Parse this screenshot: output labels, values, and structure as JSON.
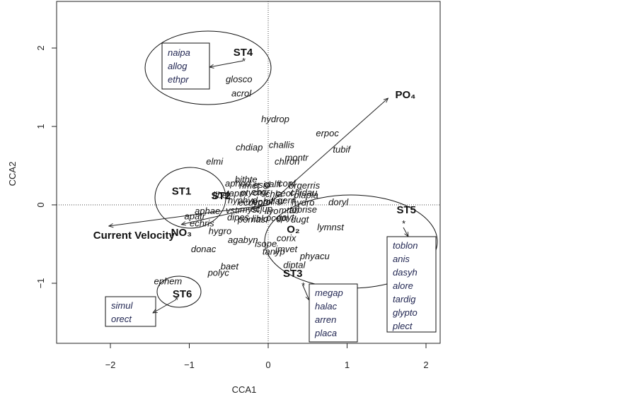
{
  "chart_data": {
    "type": "scatter",
    "xlabel": "CCA1",
    "ylabel": "CCA2",
    "xlim": [
      -2.7,
      2.2
    ],
    "ylim": [
      -1.77,
      2.5
    ],
    "xticks": [
      -2,
      -1,
      0,
      1,
      2
    ],
    "yticks": [
      -1,
      0,
      1,
      2
    ],
    "reference_lines": {
      "x": 0,
      "y": 0,
      "style": "dotted"
    },
    "grid": false,
    "species": [
      {
        "label": "glosco",
        "x": -0.37,
        "y": 1.61
      },
      {
        "label": "acrol",
        "x": -0.34,
        "y": 1.43
      },
      {
        "label": "hydrop",
        "x": 0.09,
        "y": 1.1
      },
      {
        "label": "erpoc",
        "x": 0.75,
        "y": 0.92
      },
      {
        "label": "chdiap",
        "x": -0.24,
        "y": 0.74
      },
      {
        "label": "challis",
        "x": 0.17,
        "y": 0.77
      },
      {
        "label": "tubif",
        "x": 0.93,
        "y": 0.71
      },
      {
        "label": "montr",
        "x": 0.36,
        "y": 0.61
      },
      {
        "label": "chiron",
        "x": 0.24,
        "y": 0.56
      },
      {
        "label": "elmi",
        "x": -0.68,
        "y": 0.56
      },
      {
        "label": "bithte",
        "x": -0.28,
        "y": 0.33
      },
      {
        "label": "liber",
        "x": -0.59,
        "y": 0.13
      },
      {
        "label": "plapla",
        "x": 0.48,
        "y": 0.13
      },
      {
        "label": "doryl",
        "x": 0.89,
        "y": 0.04
      },
      {
        "label": "corix",
        "x": 0.23,
        "y": -0.42
      },
      {
        "label": "lymnst",
        "x": 0.79,
        "y": -0.28
      },
      {
        "label": "aphae",
        "x": -0.77,
        "y": -0.07
      },
      {
        "label": "apatr",
        "x": -0.93,
        "y": -0.14
      },
      {
        "label": "echris",
        "x": -0.84,
        "y": -0.23
      },
      {
        "label": "hygro",
        "x": -0.61,
        "y": -0.33
      },
      {
        "label": "agabyn",
        "x": -0.32,
        "y": -0.44
      },
      {
        "label": "donac",
        "x": -0.82,
        "y": -0.56
      },
      {
        "label": "isope",
        "x": -0.03,
        "y": -0.49
      },
      {
        "label": "tanyp",
        "x": 0.07,
        "y": -0.59
      },
      {
        "label": "jmvet",
        "x": 0.23,
        "y": -0.56
      },
      {
        "label": "phyacu",
        "x": 0.59,
        "y": -0.65
      },
      {
        "label": "diptal",
        "x": 0.33,
        "y": -0.76
      },
      {
        "label": "baet",
        "x": -0.49,
        "y": -0.78
      },
      {
        "label": "polyc",
        "x": -0.63,
        "y": -0.86
      },
      {
        "label": "ephem",
        "x": -1.27,
        "y": -0.97
      }
    ],
    "sites": [
      {
        "label": "ST1",
        "x": -1.26,
        "y": 0.13
      },
      {
        "label": "ST2",
        "x": -0.76,
        "y": 0.07
      },
      {
        "label": "ST3",
        "x": 0.15,
        "y": -0.92
      },
      {
        "label": "ST4",
        "x": -0.48,
        "y": 1.9
      },
      {
        "label": "ST5",
        "x": 1.59,
        "y": -0.11
      },
      {
        "label": "ST6",
        "x": -1.25,
        "y": -1.18
      }
    ],
    "environment_vectors": [
      {
        "label": "PO₄",
        "x": 1.52,
        "y": 1.36
      },
      {
        "label": "Current Velocity",
        "x": -2.02,
        "y": -0.27
      },
      {
        "label": "NO₃",
        "x": -1.1,
        "y": -0.25
      },
      {
        "label": "O₂",
        "x": 0.2,
        "y": -0.32
      }
    ],
    "site_groups": [
      {
        "site": "ST4",
        "species": [
          "naipa",
          "allog",
          "ethpr"
        ]
      },
      {
        "site": "ST3",
        "species": [
          "megap",
          "halac",
          "arren",
          "placa"
        ]
      },
      {
        "site": "ST5",
        "species": [
          "toblon",
          "anis",
          "dasyh",
          "alore",
          "tardig",
          "glypto",
          "plect"
        ]
      },
      {
        "site": "ST6",
        "species": [
          "simul",
          "orect"
        ]
      }
    ],
    "dense_cluster_labels": [
      "aphod",
      "nmet",
      "esid",
      "galfi",
      "conf",
      "brgerris",
      "tapm",
      "ptycm",
      "ebgr",
      "chla",
      "ceol",
      "chidau",
      "hyphyd",
      "ecdyon",
      "eprol",
      "biflav",
      "gerri",
      "hydro",
      "vstr",
      "myst",
      "ecjup",
      "ilyo",
      "mtab",
      "tobrise",
      "dipes",
      "pomas",
      "liblo",
      "pcepi",
      "gayt",
      "dugt"
    ]
  }
}
